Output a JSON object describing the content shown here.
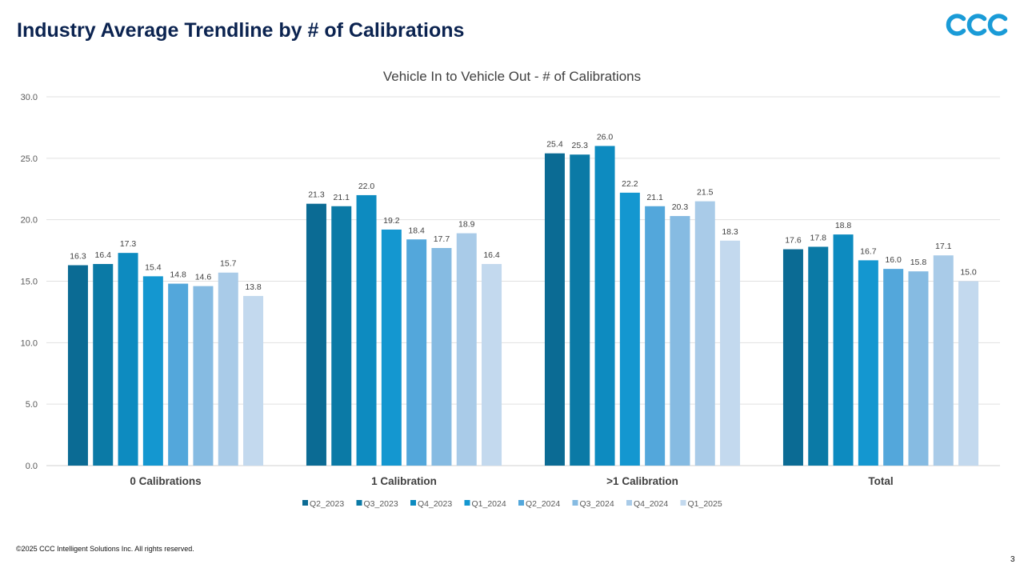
{
  "slide": {
    "title": "Industry Average Trendline by # of Calibrations",
    "footer": "©2025 CCC Intelligent Solutions Inc. All rights reserved.",
    "page_number": "3",
    "logo_text": "CCC",
    "logo_color": "#1a9bd7"
  },
  "chart_data": {
    "type": "bar",
    "title": "Vehicle In to Vehicle Out - # of Calibrations",
    "xlabel": "",
    "ylabel": "",
    "ylim": [
      0,
      30
    ],
    "yticks": [
      "0.0",
      "5.0",
      "10.0",
      "15.0",
      "20.0",
      "25.0",
      "30.0"
    ],
    "grid": true,
    "legend_position": "bottom",
    "categories": [
      "0 Calibrations",
      "1 Calibration",
      ">1 Calibration",
      "Total"
    ],
    "series": [
      {
        "name": "Q2_2023",
        "color": "#0b6b94",
        "values": [
          16.3,
          21.3,
          25.4,
          17.6
        ]
      },
      {
        "name": "Q3_2023",
        "color": "#0b7aa6",
        "values": [
          16.4,
          21.1,
          25.3,
          17.8
        ]
      },
      {
        "name": "Q4_2023",
        "color": "#0d8bc0",
        "values": [
          17.3,
          22.0,
          26.0,
          18.8
        ]
      },
      {
        "name": "Q1_2024",
        "color": "#1497d0",
        "values": [
          15.4,
          19.2,
          22.2,
          16.7
        ]
      },
      {
        "name": "Q2_2024",
        "color": "#53a7db",
        "values": [
          14.8,
          18.4,
          21.1,
          16.0
        ]
      },
      {
        "name": "Q3_2024",
        "color": "#86bbe2",
        "values": [
          14.6,
          17.7,
          20.3,
          15.8
        ]
      },
      {
        "name": "Q4_2024",
        "color": "#a9cbe8",
        "values": [
          15.7,
          18.9,
          21.5,
          17.1
        ]
      },
      {
        "name": "Q1_2025",
        "color": "#c3d9ee",
        "values": [
          13.8,
          16.4,
          18.3,
          15.0
        ]
      }
    ],
    "value_labels": [
      [
        "16.3",
        "21.3",
        "25.4",
        "17.6"
      ],
      [
        "16.4",
        "21.1",
        "25.3",
        "17.8"
      ],
      [
        "17.3",
        "22.0",
        "26.0",
        "18.8"
      ],
      [
        "15.4",
        "19.2",
        "22.2",
        "16.7"
      ],
      [
        "14.8",
        "18.4",
        "21.1",
        "16.0"
      ],
      [
        "14.6",
        "17.7",
        "20.3",
        "15.8"
      ],
      [
        "15.7",
        "18.9",
        "21.5",
        "17.1"
      ],
      [
        "13.8",
        "16.4",
        "18.3",
        "15.0"
      ]
    ]
  }
}
